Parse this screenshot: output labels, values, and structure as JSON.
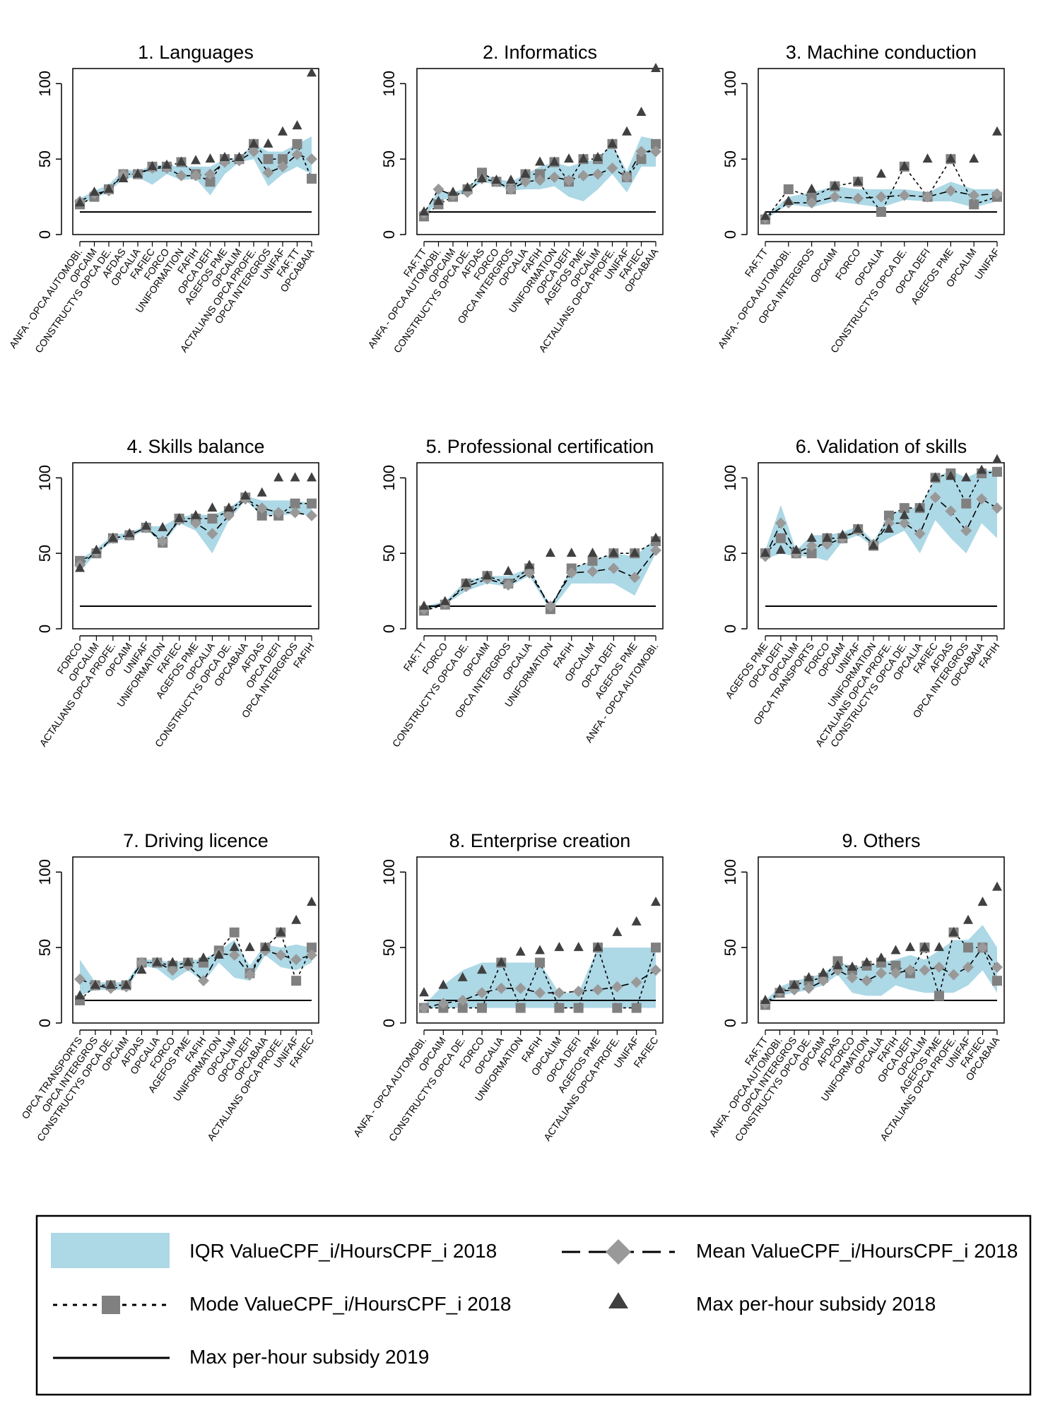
{
  "legend": {
    "iqr": "IQR ValueCPF_i/HoursCPF_i 2018",
    "mean": "Mean ValueCPF_i/HoursCPF_i 2018",
    "mode": "Mode ValueCPF_i/HoursCPF_i 2018",
    "max2018": "Max per-hour subsidy 2018",
    "max2019": "Max per-hour subsidy 2019"
  },
  "colors": {
    "iqr_fill": "#add8e6",
    "mean_marker": "#999999",
    "mode_marker": "#808080",
    "max2018_marker": "#404040",
    "line": "#000000"
  },
  "chart_data": [
    {
      "type": "line",
      "title": "1. Languages",
      "ylim": [
        0,
        110
      ],
      "yticks": [
        0,
        50,
        100
      ],
      "max2019": 15,
      "categories": [
        "ANFA - OPCA AUTOMOBI.",
        "OPCAIM",
        "CONSTRUCTYS OPCA DE.",
        "AFDAS",
        "OPCALIA",
        "FAFIEC",
        "FORCO",
        "UNIFORMATION",
        "FAFIH",
        "OPCA DEFI",
        "AGEFOS PME",
        "OPCALIM",
        "ACTALIANS OPCA PROFE.",
        "OPCA INTERGROS",
        "UNIFAF",
        "FAF.TT",
        "OPCABAIA"
      ],
      "max2018": [
        21,
        28,
        30,
        37,
        40,
        45,
        46,
        48,
        49,
        50,
        51,
        51,
        60,
        60,
        68,
        72,
        107
      ],
      "mode": [
        20,
        25,
        30,
        40,
        40,
        45,
        45,
        48,
        40,
        35,
        50,
        50,
        60,
        50,
        50,
        60,
        37
      ],
      "mean": [
        22,
        27,
        29,
        40,
        40,
        44,
        44,
        39,
        39,
        40,
        48,
        49,
        55,
        41,
        45,
        53,
        50
      ],
      "q1": [
        20,
        24,
        28,
        37,
        38,
        33,
        40,
        36,
        37,
        26,
        40,
        48,
        50,
        32,
        40,
        45,
        40
      ],
      "q3": [
        24,
        29,
        33,
        43,
        42,
        46,
        46,
        45,
        45,
        45,
        50,
        51,
        60,
        55,
        55,
        60,
        65
      ]
    },
    {
      "type": "line",
      "title": "2. Informatics",
      "ylim": [
        0,
        110
      ],
      "yticks": [
        0,
        50,
        100
      ],
      "max2019": 15,
      "categories": [
        "FAF.TT",
        "ANFA - OPCA AUTOMOBI.",
        "OPCAIM",
        "CONSTRUCTYS OPCA DE.",
        "AFDAS",
        "FORCO",
        "OPCA INTERGROS",
        "OPCALIA",
        "FAFIH",
        "UNIFORMATION",
        "OPCA DEFI",
        "AGEFOS PME",
        "OPCALIM",
        "ACTALIANS OPCA PROFE.",
        "UNIFAF",
        "FAFIEC",
        "OPCABAIA"
      ],
      "max2018": [
        15,
        22,
        28,
        31,
        37,
        36,
        36,
        40,
        48,
        48,
        50,
        50,
        51,
        60,
        68,
        81,
        110
      ],
      "mode": [
        12,
        20,
        25,
        30,
        41,
        35,
        30,
        40,
        40,
        48,
        35,
        50,
        50,
        60,
        38,
        50,
        60
      ],
      "mean": [
        14,
        30,
        26,
        28,
        37,
        35,
        30,
        35,
        36,
        38,
        36,
        39,
        40,
        44,
        38,
        55,
        55
      ],
      "q1": [
        12,
        22,
        25,
        28,
        35,
        33,
        29,
        30,
        30,
        32,
        25,
        22,
        30,
        40,
        28,
        45,
        45
      ],
      "q3": [
        15,
        29,
        28,
        31,
        40,
        37,
        35,
        40,
        45,
        48,
        45,
        48,
        50,
        60,
        42,
        65,
        63
      ]
    },
    {
      "type": "line",
      "title": "3. Machine conduction",
      "ylim": [
        0,
        110
      ],
      "yticks": [
        0,
        50,
        100
      ],
      "max2019": 15,
      "categories": [
        "FAF.TT",
        "ANFA - OPCA AUTOMOBI.",
        "OPCA INTERGROS",
        "OPCAIM",
        "FORCO",
        "OPCALIA",
        "CONSTRUCTYS OPCA DE.",
        "OPCA DEFI",
        "AGEFOS PME",
        "OPCALIM",
        "UNIFAF"
      ],
      "max2018": [
        12,
        22,
        30,
        32,
        35,
        40,
        45,
        50,
        50,
        50,
        68
      ],
      "mode": [
        10,
        30,
        25,
        32,
        35,
        15,
        45,
        25,
        50,
        20,
        25
      ],
      "mean": [
        11,
        21,
        21,
        25,
        24,
        25,
        26,
        25,
        29,
        26,
        27
      ],
      "q1": [
        10,
        20,
        18,
        22,
        20,
        18,
        23,
        22,
        22,
        18,
        22
      ],
      "q3": [
        12,
        25,
        28,
        32,
        30,
        30,
        30,
        28,
        35,
        30,
        30
      ]
    },
    {
      "type": "line",
      "title": "4. Skills balance",
      "ylim": [
        0,
        110
      ],
      "yticks": [
        0,
        50,
        100
      ],
      "max2019": 15,
      "categories": [
        "FORCO",
        "OPCALIM",
        "ACTALIANS OPCA PROFE.",
        "OPCAIM",
        "UNIFAF",
        "UNIFORMATION",
        "FAFIEC",
        "AGEFOS PME",
        "OPCALIA",
        "CONSTRUCTYS OPCA DE.",
        "OPCABAIA",
        "AFDAS",
        "OPCA DEFI",
        "OPCA INTERGROS",
        "FAFIH"
      ],
      "max2018": [
        40,
        52,
        60,
        63,
        68,
        67,
        73,
        75,
        80,
        80,
        88,
        90,
        100,
        100,
        100
      ],
      "mode": [
        45,
        50,
        60,
        62,
        67,
        57,
        73,
        73,
        73,
        78,
        87,
        75,
        75,
        83,
        83
      ],
      "mean": [
        42,
        51,
        60,
        62,
        67,
        58,
        72,
        70,
        63,
        75,
        86,
        80,
        77,
        77,
        75
      ],
      "q1": [
        38,
        50,
        58,
        60,
        66,
        56,
        70,
        65,
        50,
        72,
        85,
        75,
        75,
        76,
        75
      ],
      "q3": [
        46,
        53,
        62,
        64,
        68,
        68,
        74,
        76,
        75,
        80,
        88,
        85,
        85,
        85,
        83
      ]
    },
    {
      "type": "line",
      "title": "5. Professional certification",
      "ylim": [
        0,
        110
      ],
      "yticks": [
        0,
        50,
        100
      ],
      "max2019": 15,
      "categories": [
        "FAF.TT",
        "FORCO",
        "CONSTRUCTYS OPCA DE.",
        "OPCAIM",
        "OPCA INTERGROS",
        "OPCALIA",
        "UNIFORMATION",
        "FAFIH",
        "OPCALIM",
        "OPCA DEFI",
        "AGEFOS PME",
        "ANFA - OPCA AUTOMOBI."
      ],
      "max2018": [
        15,
        18,
        30,
        35,
        38,
        42,
        50,
        50,
        50,
        50,
        50,
        60
      ],
      "mode": [
        12,
        16,
        30,
        35,
        30,
        40,
        13,
        40,
        45,
        50,
        50,
        58
      ],
      "mean": [
        13,
        17,
        28,
        33,
        29,
        37,
        15,
        37,
        38,
        40,
        34,
        52
      ],
      "q1": [
        12,
        16,
        25,
        30,
        28,
        35,
        12,
        30,
        30,
        30,
        22,
        50
      ],
      "q3": [
        15,
        18,
        32,
        35,
        35,
        40,
        15,
        40,
        45,
        50,
        48,
        60
      ]
    },
    {
      "type": "line",
      "title": "6. Validation of skills",
      "ylim": [
        0,
        110
      ],
      "yticks": [
        0,
        50,
        100
      ],
      "max2019": 15,
      "categories": [
        "AGEFOS PME",
        "OPCA DEFI",
        "OPCALIM",
        "OPCA TRANSPORTS",
        "FORCO",
        "OPCAIM",
        "UNIFAF",
        "UNIFORMATION",
        "ACTALIANS OPCA PROFE.",
        "CONSTRUCTYS OPCA DE.",
        "OPCALIA",
        "FAFIEC",
        "AFDAS",
        "OPCA INTERGROS",
        "OPCABAIA",
        "FAFIH"
      ],
      "max2018": [
        50,
        52,
        52,
        60,
        60,
        62,
        66,
        55,
        66,
        75,
        80,
        100,
        101,
        100,
        105,
        112
      ],
      "mode": [
        50,
        60,
        50,
        50,
        60,
        60,
        66,
        55,
        75,
        80,
        80,
        100,
        103,
        83,
        103,
        104
      ],
      "mean": [
        48,
        70,
        50,
        55,
        56,
        60,
        65,
        56,
        70,
        70,
        63,
        87,
        78,
        65,
        86,
        80
      ],
      "q1": [
        46,
        50,
        48,
        48,
        45,
        58,
        62,
        54,
        60,
        65,
        50,
        72,
        60,
        50,
        70,
        60
      ],
      "q3": [
        52,
        82,
        52,
        62,
        62,
        64,
        68,
        58,
        75,
        80,
        80,
        100,
        105,
        100,
        105,
        105
      ]
    },
    {
      "type": "line",
      "title": "7. Driving licence",
      "ylim": [
        0,
        110
      ],
      "yticks": [
        0,
        50,
        100
      ],
      "max2019": 15,
      "categories": [
        "OPCA TRANSPORTS",
        "OPCA INTERGROS",
        "CONSTRUCTYS OPCA DE.",
        "OPCAIM",
        "AFDAS",
        "OPCALIA",
        "FORCO",
        "AGEFOS PME",
        "FAFIH",
        "UNIFORMATION",
        "OPCALIM",
        "OPCA DEFI",
        "OPCABAIA",
        "ACTALIANS OPCA PROFE.",
        "UNIFAF",
        "FAFIEC"
      ],
      "max2018": [
        18,
        25,
        25,
        25,
        35,
        40,
        40,
        40,
        43,
        45,
        50,
        50,
        50,
        60,
        68,
        80
      ],
      "mode": [
        15,
        25,
        25,
        25,
        40,
        40,
        38,
        40,
        40,
        48,
        60,
        33,
        50,
        60,
        28,
        50
      ],
      "mean": [
        29,
        25,
        23,
        24,
        40,
        40,
        35,
        38,
        28,
        46,
        45,
        32,
        48,
        45,
        42,
        45
      ],
      "q1": [
        18,
        22,
        22,
        22,
        38,
        36,
        28,
        35,
        27,
        40,
        30,
        28,
        45,
        37,
        35,
        40
      ],
      "q3": [
        42,
        27,
        27,
        27,
        42,
        42,
        40,
        42,
        42,
        48,
        55,
        38,
        52,
        50,
        52,
        50
      ]
    },
    {
      "type": "line",
      "title": "8. Enterprise creation",
      "ylim": [
        0,
        110
      ],
      "yticks": [
        0,
        50,
        100
      ],
      "max2019": 15,
      "categories": [
        "ANFA - OPCA AUTOMOBI.",
        "OPCAIM",
        "CONSTRUCTYS OPCA DE.",
        "FORCO",
        "OPCALIA",
        "UNIFORMATION",
        "FAFIH",
        "OPCALIM",
        "OPCA DEFI",
        "AGEFOS PME",
        "ACTALIANS OPCA PROFE.",
        "UNIFAF",
        "FAFIEC"
      ],
      "max2018": [
        20,
        25,
        30,
        35,
        40,
        47,
        48,
        50,
        50,
        50,
        60,
        67,
        80
      ],
      "mode": [
        10,
        10,
        10,
        10,
        40,
        10,
        40,
        10,
        10,
        50,
        10,
        10,
        50
      ],
      "mean": [
        10,
        13,
        15,
        20,
        23,
        23,
        20,
        20,
        21,
        22,
        24,
        27,
        35
      ],
      "q1": [
        10,
        10,
        10,
        10,
        10,
        10,
        10,
        10,
        10,
        10,
        10,
        10,
        10
      ],
      "q3": [
        12,
        25,
        35,
        40,
        40,
        40,
        40,
        20,
        20,
        50,
        50,
        50,
        50
      ]
    },
    {
      "type": "line",
      "title": "9. Others",
      "ylim": [
        0,
        110
      ],
      "yticks": [
        0,
        50,
        100
      ],
      "max2019": 15,
      "categories": [
        "FAF.TT",
        "ANFA - OPCA AUTOMOBI.",
        "OPCA INTERGROS",
        "CONSTRUCTYS OPCA DE.",
        "OPCAIM",
        "AFDAS",
        "FORCO",
        "UNIFORMATION",
        "OPCALIA",
        "FAFIH",
        "OPCA DEFI",
        "OPCALIM",
        "AGEFOS PME",
        "ACTALIANS OPCA PROFE.",
        "UNIFAF",
        "FAFIEC",
        "OPCABAIA"
      ],
      "max2018": [
        15,
        22,
        25,
        30,
        33,
        38,
        37,
        40,
        43,
        48,
        50,
        50,
        50,
        60,
        68,
        80,
        90
      ],
      "mode": [
        12,
        20,
        25,
        28,
        30,
        41,
        35,
        38,
        40,
        38,
        33,
        50,
        18,
        60,
        50,
        50,
        28
      ],
      "mean": [
        13,
        21,
        22,
        23,
        28,
        35,
        30,
        28,
        33,
        33,
        35,
        35,
        37,
        32,
        37,
        50,
        37
      ],
      "q1": [
        12,
        18,
        20,
        22,
        25,
        32,
        20,
        18,
        18,
        25,
        22,
        20,
        20,
        20,
        25,
        35,
        20
      ],
      "q3": [
        15,
        24,
        28,
        30,
        33,
        40,
        38,
        37,
        40,
        42,
        45,
        42,
        48,
        55,
        55,
        65,
        50
      ]
    }
  ]
}
